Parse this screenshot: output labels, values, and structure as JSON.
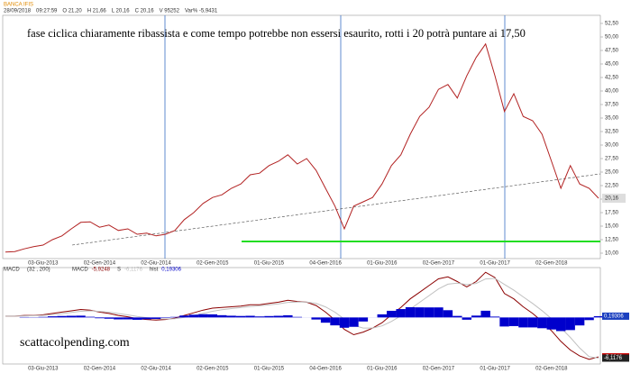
{
  "header": {
    "title": "BANCA IFIS",
    "fields": [
      "28/09/2018",
      "09:27:59",
      "O 21,20",
      "H 21,66",
      "L 20,16",
      "C 20,16",
      "V 95252",
      "Var% -5,9431"
    ]
  },
  "watermark": "scattacolpending.com",
  "chart_data": [
    {
      "type": "line",
      "annotation": "fase ciclica chiaramente ribassista e come tempo potrebbe non essersi esaurito, rotti i 20 potrà puntare ai 17,50",
      "categories": [
        null,
        null,
        null,
        null,
        "03-Giu-2013",
        null,
        null,
        null,
        null,
        null,
        "02-Gen-2014",
        null,
        null,
        null,
        null,
        null,
        "02-Giu-2014",
        null,
        null,
        null,
        null,
        null,
        "02-Gen-2015",
        null,
        null,
        null,
        null,
        null,
        "01-Giu-2015",
        null,
        null,
        null,
        null,
        null,
        "04-Gen-2016",
        null,
        null,
        null,
        null,
        null,
        "01-Giu-2016",
        null,
        null,
        null,
        null,
        null,
        "02-Gen-2017",
        null,
        null,
        null,
        null,
        null,
        "01-Giu-2017",
        null,
        null,
        null,
        null,
        null,
        "02-Gen-2018",
        null,
        null,
        null,
        null,
        null
      ],
      "series": [
        {
          "name": "BANCA IFIS",
          "color": "#b22222",
          "values": [
            10.2,
            10.3,
            10.8,
            11.2,
            11.5,
            12.5,
            13.2,
            14.5,
            15.7,
            15.8,
            14.8,
            15.2,
            14.2,
            14.5,
            13.5,
            13.7,
            13.2,
            13.5,
            14.2,
            16.2,
            17.5,
            19.2,
            20.3,
            20.8,
            22,
            22.8,
            24.5,
            24.8,
            26.2,
            27,
            28.2,
            26.5,
            27.5,
            25.3,
            22,
            18.7,
            14.5,
            18.7,
            19.5,
            20.3,
            22.8,
            26.2,
            28.2,
            32,
            35.3,
            37,
            40.3,
            41.2,
            38.7,
            42.8,
            46.2,
            48.7,
            42.8,
            36.2,
            39.5,
            35.3,
            34.5,
            32,
            27,
            22,
            26.2,
            22.8,
            22,
            20.16
          ],
          "last_label": "20,16"
        }
      ],
      "ylim": [
        9,
        54
      ],
      "yticks": [
        {
          "value": 10,
          "label": "10,00"
        },
        {
          "value": 12.5,
          "label": "12,50"
        },
        {
          "value": 15,
          "label": "15,00"
        },
        {
          "value": 17.5,
          "label": "17,50"
        },
        {
          "value": 20,
          "label": "20,00"
        },
        {
          "value": 22.5,
          "label": "22,50"
        },
        {
          "value": 25,
          "label": "25,00"
        },
        {
          "value": 27.5,
          "label": "27,50"
        },
        {
          "value": 30,
          "label": "30,00"
        },
        {
          "value": 32.5,
          "label": "32,50"
        },
        {
          "value": 35,
          "label": "35,00"
        },
        {
          "value": 37.5,
          "label": "37,50"
        },
        {
          "value": 40,
          "label": "40,00"
        },
        {
          "value": 42.5,
          "label": "42,50"
        },
        {
          "value": 45,
          "label": "45,00"
        },
        {
          "value": 47.5,
          "label": "47,50"
        },
        {
          "value": 50,
          "label": "50,00"
        },
        {
          "value": 52.5,
          "label": "52,50"
        }
      ]
    },
    {
      "type": "macd",
      "title": "MACD",
      "params": "(32 , 200)",
      "series": [
        {
          "name": "MACD",
          "color": "#8b0000",
          "values": [
            0.2,
            0.2,
            0.3,
            0.3,
            0.4,
            0.6,
            0.8,
            1.0,
            1.2,
            1.1,
            0.8,
            0.6,
            0.3,
            0.1,
            -0.2,
            -0.3,
            -0.4,
            -0.3,
            -0.1,
            0.3,
            0.7,
            1.1,
            1.4,
            1.5,
            1.6,
            1.7,
            1.9,
            1.9,
            2.1,
            2.3,
            2.6,
            2.4,
            2.3,
            1.8,
            0.8,
            -0.4,
            -1.8,
            -2.6,
            -2.2,
            -1.6,
            -0.8,
            0.4,
            1.5,
            2.8,
            3.8,
            4.8,
            5.8,
            6.1,
            5.4,
            4.6,
            5.4,
            6.8,
            6.0,
            3.6,
            2.8,
            1.6,
            0.6,
            -0.6,
            -2.0,
            -3.6,
            -4.9,
            -5.8,
            -6.3,
            -5.9248
          ],
          "last_label": "-5,9248"
        },
        {
          "name": "S",
          "color": "#c0c0c0",
          "values": [
            0.2,
            0.2,
            0.24,
            0.26,
            0.32,
            0.43,
            0.58,
            0.75,
            0.93,
            1.0,
            0.92,
            0.79,
            0.59,
            0.39,
            0.15,
            -0.03,
            -0.18,
            -0.23,
            -0.18,
            0.01,
            0.29,
            0.61,
            0.93,
            1.16,
            1.34,
            1.48,
            1.65,
            1.75,
            1.89,
            2.05,
            2.27,
            2.32,
            2.31,
            2.11,
            1.59,
            0.79,
            -0.25,
            -1.19,
            -1.59,
            -1.59,
            -1.27,
            -0.6,
            0.24,
            1.26,
            2.28,
            3.29,
            4.29,
            5.01,
            5.17,
            4.94,
            5.12,
            5.79,
            5.87,
            4.96,
            4.1,
            3.1,
            2.1,
            1.02,
            -0.19,
            -1.55,
            -3.0,
            -4.6,
            -5.9,
            -6.1176
          ],
          "last_label": "-6,1176"
        },
        {
          "name": "hist",
          "color": "#0000cc",
          "values": [
            0,
            0,
            0.06,
            0.04,
            0.08,
            0.17,
            0.22,
            0.25,
            0.27,
            0.1,
            -0.12,
            -0.19,
            -0.29,
            -0.29,
            -0.35,
            -0.27,
            -0.22,
            -0.07,
            0.08,
            0.29,
            0.41,
            0.49,
            0.47,
            0.34,
            0.26,
            0.22,
            0.25,
            0.15,
            0.21,
            0.25,
            0.33,
            0.08,
            -0.01,
            -0.31,
            -0.79,
            -1.19,
            -1.55,
            -1.41,
            -0.61,
            -0.01,
            0.47,
            1.0,
            1.26,
            1.54,
            1.52,
            1.51,
            1.51,
            1.09,
            0.23,
            -0.34,
            0.28,
            1.01,
            0.13,
            -1.36,
            -1.3,
            -1.5,
            -1.5,
            -1.62,
            -1.81,
            -2.05,
            -1.9,
            -1.2,
            -0.4,
            0.19306
          ],
          "last_label": "0,19306"
        }
      ],
      "ylim": [
        -7,
        7.5
      ]
    }
  ]
}
